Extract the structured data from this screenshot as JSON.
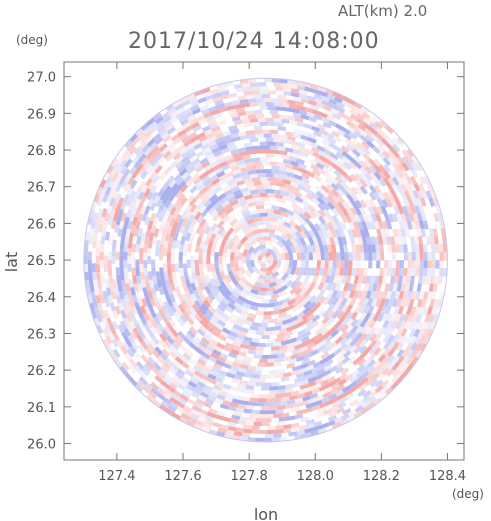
{
  "header": {
    "altitude_label": "ALT(km) 2.0",
    "datetime": "2017/10/24 14:08:00"
  },
  "chart_data": {
    "type": "heatmap",
    "title": "2017/10/24 14:08:00",
    "xlabel": "lon",
    "ylabel": "lat",
    "x_unit": "(deg)",
    "y_unit": "(deg)",
    "xlim": [
      127.24,
      128.45
    ],
    "ylim": [
      25.955,
      27.04
    ],
    "x_ticks": [
      127.4,
      127.6,
      127.8,
      128.0,
      128.2,
      128.4
    ],
    "y_ticks": [
      26.0,
      26.1,
      26.2,
      26.3,
      26.4,
      26.5,
      26.6,
      26.7,
      26.8,
      26.9,
      27.0
    ],
    "x_tick_labels": [
      "127.4",
      "127.6",
      "127.8",
      "128.0",
      "128.2",
      "128.4"
    ],
    "y_tick_labels": [
      "26.0",
      "26.1",
      "26.2",
      "26.3",
      "26.4",
      "26.5",
      "26.6",
      "26.7",
      "26.8",
      "26.9",
      "27.0"
    ],
    "radar_center": {
      "lon": 127.85,
      "lat": 26.5
    },
    "radar_range_deg": 0.55,
    "colors": {
      "positive": "#f4a9a9",
      "negative": "#aab0ee",
      "neutral": "#ffffff",
      "frame": "#777777"
    },
    "grid": false
  }
}
